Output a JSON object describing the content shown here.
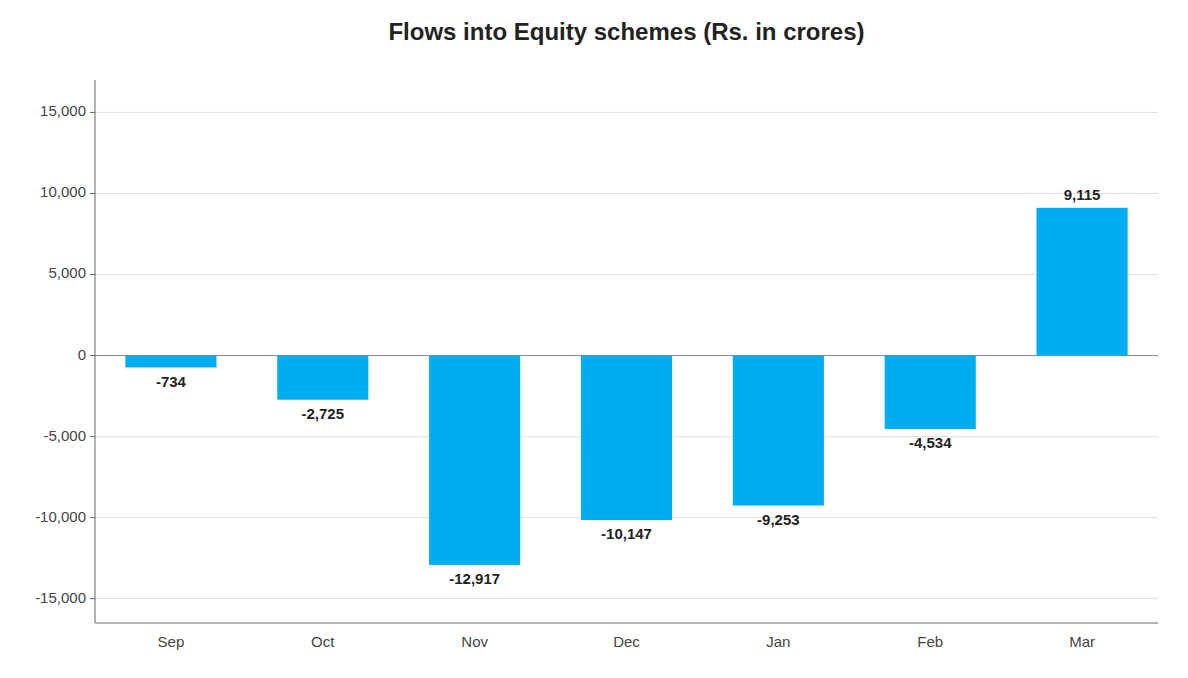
{
  "chart_data": {
    "type": "bar",
    "title": "Flows into Equity schemes (Rs. in crores)",
    "categories": [
      "Sep",
      "Oct",
      "Nov",
      "Dec",
      "Jan",
      "Feb",
      "Mar"
    ],
    "values": [
      -734,
      -2725,
      -12917,
      -10147,
      -9253,
      -4534,
      9115
    ],
    "value_labels": [
      "-734",
      "-2,725",
      "-12,917",
      "-10,147",
      "-9,253",
      "-4,534",
      "9,115"
    ],
    "data_labels": true,
    "color": "#00AEEF",
    "ylim": [
      -16500,
      17000
    ],
    "yticks": [
      {
        "value": -15000,
        "label": "-15,000"
      },
      {
        "value": -10000,
        "label": "-10,000"
      },
      {
        "value": -5000,
        "label": "-5,000"
      },
      0,
      {
        "value": 5000,
        "label": "5,000"
      },
      {
        "value": 10000,
        "label": "10,000"
      },
      {
        "value": 15000,
        "label": "15,000"
      }
    ],
    "grid": true
  }
}
